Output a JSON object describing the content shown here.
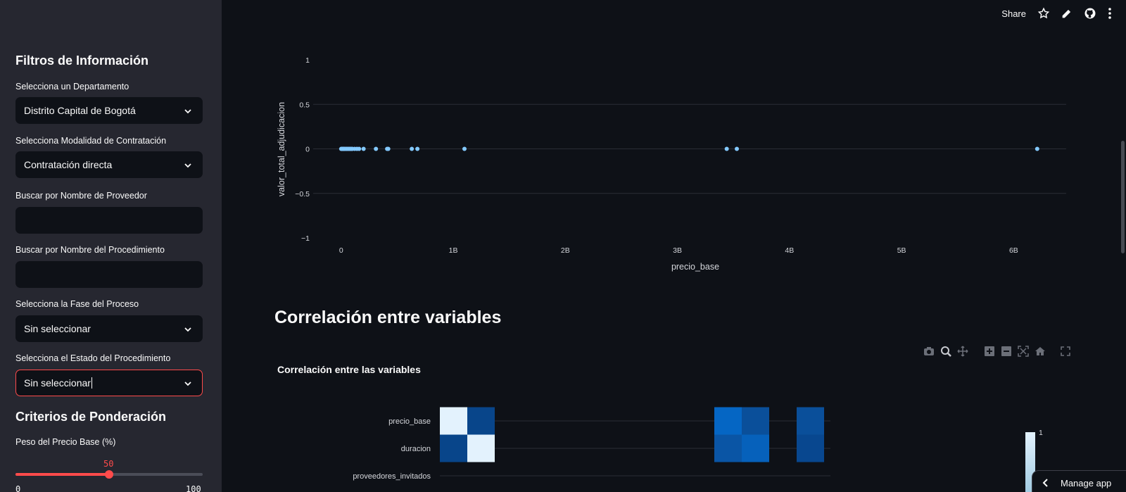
{
  "toolbar": {
    "share_label": "Share",
    "icons": [
      "star-icon",
      "edit-icon",
      "github-icon",
      "more-icon"
    ]
  },
  "sidebar": {
    "heading_filters": "Filtros de Información",
    "department": {
      "label": "Selecciona un Departamento",
      "value": "Distrito Capital de Bogotá"
    },
    "modality": {
      "label": "Selecciona Modalidad de Contratación",
      "value": "Contratación directa"
    },
    "provider_search": {
      "label": "Buscar por Nombre de Proveedor",
      "value": ""
    },
    "procedure_search": {
      "label": "Buscar por Nombre del Procedimiento",
      "value": ""
    },
    "phase": {
      "label": "Selecciona la Fase del Proceso",
      "value": "Sin seleccionar"
    },
    "state": {
      "label": "Selecciona el Estado del Procedimiento",
      "value": "Sin seleccionar"
    },
    "heading_criteria": "Criterios de Ponderación",
    "base_price_weight": {
      "label": "Peso del Precio Base (%)",
      "value": 50,
      "min": "0",
      "max": "100"
    }
  },
  "main": {
    "section_title": "Correlación entre variables",
    "heatmap_title": "Correlación entre las variables",
    "manage_app_label": "Manage app"
  },
  "chart_data": [
    {
      "type": "scatter",
      "title": "",
      "xlabel": "precio_base",
      "ylabel": "valor_total_adjudicacion",
      "xlim": [
        -250000000,
        6500000000
      ],
      "ylim": [
        -1,
        1
      ],
      "x_ticks": [
        "0",
        "1B",
        "2B",
        "3B",
        "4B",
        "5B",
        "6B"
      ],
      "y_ticks": [
        "1",
        "0.5",
        "0",
        "−0.5",
        "−1"
      ],
      "grid": true,
      "marker_color": "#83c9ff",
      "series": [
        {
          "x": [
            0,
            5000000,
            10000000,
            15000000,
            20000000,
            25000000,
            30000000,
            40000000,
            50000000,
            60000000,
            70000000,
            80000000,
            90000000,
            100000000,
            120000000,
            140000000,
            160000000,
            200000000,
            310000000,
            410000000,
            420000000,
            630000000,
            680000000,
            1100000000,
            3440000000,
            3530000000,
            6210000000
          ],
          "y": [
            0,
            0,
            0,
            0,
            0,
            0,
            0,
            0,
            0,
            0,
            0,
            0,
            0,
            0,
            0,
            0,
            0,
            0,
            0,
            0,
            0,
            0,
            0,
            0,
            0,
            0,
            0
          ]
        }
      ]
    },
    {
      "type": "heatmap",
      "title": "Correlación entre las variables",
      "y_labels": [
        "precio_base",
        "duracion",
        "proveedores_invitados"
      ],
      "colorbar_max_label": "1",
      "colorscale": "Blues"
    }
  ],
  "modebar_icons": [
    "camera-icon",
    "zoom-icon",
    "pan-icon",
    "zoom-in-icon",
    "zoom-out-icon",
    "autoscale-icon",
    "reset-axes-icon",
    "fullscreen-icon"
  ]
}
